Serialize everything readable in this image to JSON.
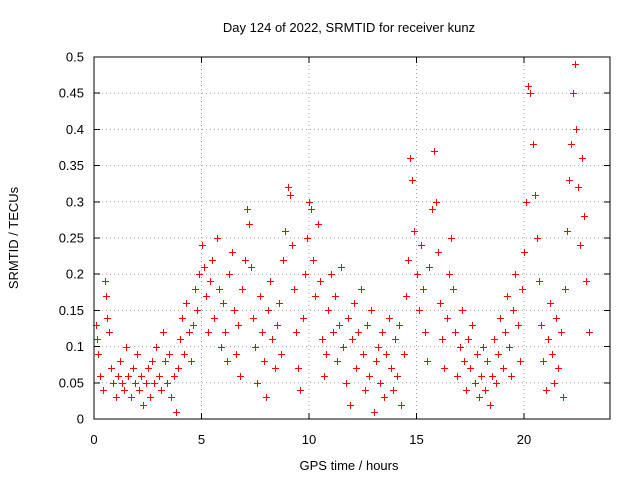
{
  "chart_data": {
    "type": "scatter",
    "title": "Day 124 of 2022, SRMTID for receiver kunz",
    "xlabel": "GPS time / hours",
    "ylabel": "SRMTID / TECUs",
    "xlim": [
      0,
      24
    ],
    "ylim": [
      0,
      0.5
    ],
    "xticks": [
      0,
      5,
      10,
      15,
      20
    ],
    "xtick_labels": [
      "0",
      "5",
      "10",
      "15",
      "20"
    ],
    "yticks": [
      0,
      0.05,
      0.1,
      0.15,
      0.2,
      0.25,
      0.3,
      0.35,
      0.4,
      0.45,
      0.5
    ],
    "ytick_labels": [
      "0",
      "0.05",
      "0.1",
      "0.15",
      "0.2",
      "0.25",
      "0.3",
      "0.35",
      "0.4",
      "0.45",
      "0.5"
    ],
    "grid": true,
    "marker": "+",
    "marker_color": "#ff0000",
    "series": [
      {
        "name": "SRMTID",
        "points": [
          [
            0.1,
            0.13
          ],
          [
            0.15,
            0.11
          ],
          [
            0.2,
            0.09
          ],
          [
            0.3,
            0.06
          ],
          [
            0.4,
            0.04
          ],
          [
            0.5,
            0.19
          ],
          [
            0.55,
            0.17
          ],
          [
            0.6,
            0.14
          ],
          [
            0.7,
            0.12
          ],
          [
            0.8,
            0.07
          ],
          [
            0.9,
            0.05
          ],
          [
            1.0,
            0.03
          ],
          [
            1.1,
            0.06
          ],
          [
            1.2,
            0.08
          ],
          [
            1.3,
            0.05
          ],
          [
            1.4,
            0.04
          ],
          [
            1.5,
            0.1
          ],
          [
            1.6,
            0.06
          ],
          [
            1.7,
            0.03
          ],
          [
            1.8,
            0.07
          ],
          [
            1.9,
            0.05
          ],
          [
            2.0,
            0.09
          ],
          [
            2.1,
            0.04
          ],
          [
            2.2,
            0.06
          ],
          [
            2.3,
            0.02
          ],
          [
            2.4,
            0.05
          ],
          [
            2.5,
            0.07
          ],
          [
            2.6,
            0.03
          ],
          [
            2.7,
            0.08
          ],
          [
            2.8,
            0.05
          ],
          [
            2.9,
            0.1
          ],
          [
            3.0,
            0.06
          ],
          [
            3.1,
            0.04
          ],
          [
            3.2,
            0.12
          ],
          [
            3.3,
            0.08
          ],
          [
            3.4,
            0.05
          ],
          [
            3.5,
            0.09
          ],
          [
            3.6,
            0.03
          ],
          [
            3.7,
            0.06
          ],
          [
            3.8,
            0.01
          ],
          [
            3.9,
            0.07
          ],
          [
            4.0,
            0.11
          ],
          [
            4.1,
            0.14
          ],
          [
            4.2,
            0.09
          ],
          [
            4.3,
            0.16
          ],
          [
            4.4,
            0.12
          ],
          [
            4.5,
            0.08
          ],
          [
            4.6,
            0.13
          ],
          [
            4.7,
            0.18
          ],
          [
            4.8,
            0.15
          ],
          [
            4.9,
            0.2
          ],
          [
            5.0,
            0.24
          ],
          [
            5.1,
            0.21
          ],
          [
            5.2,
            0.17
          ],
          [
            5.3,
            0.12
          ],
          [
            5.4,
            0.19
          ],
          [
            5.5,
            0.22
          ],
          [
            5.6,
            0.14
          ],
          [
            5.7,
            0.25
          ],
          [
            5.8,
            0.18
          ],
          [
            5.9,
            0.1
          ],
          [
            6.0,
            0.16
          ],
          [
            6.1,
            0.12
          ],
          [
            6.2,
            0.08
          ],
          [
            6.3,
            0.2
          ],
          [
            6.4,
            0.23
          ],
          [
            6.5,
            0.15
          ],
          [
            6.6,
            0.09
          ],
          [
            6.7,
            0.13
          ],
          [
            6.8,
            0.06
          ],
          [
            6.9,
            0.18
          ],
          [
            7.0,
            0.22
          ],
          [
            7.1,
            0.29
          ],
          [
            7.2,
            0.27
          ],
          [
            7.3,
            0.21
          ],
          [
            7.4,
            0.14
          ],
          [
            7.5,
            0.1
          ],
          [
            7.6,
            0.05
          ],
          [
            7.7,
            0.17
          ],
          [
            7.8,
            0.12
          ],
          [
            7.9,
            0.08
          ],
          [
            8.0,
            0.03
          ],
          [
            8.1,
            0.15
          ],
          [
            8.2,
            0.19
          ],
          [
            8.3,
            0.11
          ],
          [
            8.4,
            0.07
          ],
          [
            8.5,
            0.13
          ],
          [
            8.6,
            0.16
          ],
          [
            8.7,
            0.09
          ],
          [
            8.8,
            0.22
          ],
          [
            8.9,
            0.26
          ],
          [
            9.0,
            0.32
          ],
          [
            9.1,
            0.31
          ],
          [
            9.2,
            0.24
          ],
          [
            9.3,
            0.18
          ],
          [
            9.4,
            0.12
          ],
          [
            9.5,
            0.07
          ],
          [
            9.6,
            0.04
          ],
          [
            9.7,
            0.14
          ],
          [
            9.8,
            0.2
          ],
          [
            9.9,
            0.25
          ],
          [
            10.0,
            0.3
          ],
          [
            10.1,
            0.29
          ],
          [
            10.2,
            0.22
          ],
          [
            10.3,
            0.17
          ],
          [
            10.4,
            0.27
          ],
          [
            10.5,
            0.19
          ],
          [
            10.6,
            0.11
          ],
          [
            10.7,
            0.06
          ],
          [
            10.8,
            0.09
          ],
          [
            10.9,
            0.15
          ],
          [
            11.0,
            0.2
          ],
          [
            11.1,
            0.12
          ],
          [
            11.2,
            0.17
          ],
          [
            11.3,
            0.08
          ],
          [
            11.4,
            0.13
          ],
          [
            11.5,
            0.21
          ],
          [
            11.6,
            0.1
          ],
          [
            11.7,
            0.05
          ],
          [
            11.8,
            0.14
          ],
          [
            11.9,
            0.02
          ],
          [
            12.0,
            0.11
          ],
          [
            12.1,
            0.16
          ],
          [
            12.2,
            0.07
          ],
          [
            12.3,
            0.12
          ],
          [
            12.4,
            0.18
          ],
          [
            12.5,
            0.09
          ],
          [
            12.6,
            0.04
          ],
          [
            12.7,
            0.13
          ],
          [
            12.8,
            0.06
          ],
          [
            12.9,
            0.15
          ],
          [
            13.0,
            0.01
          ],
          [
            13.1,
            0.08
          ],
          [
            13.2,
            0.1
          ],
          [
            13.3,
            0.05
          ],
          [
            13.4,
            0.12
          ],
          [
            13.5,
            0.03
          ],
          [
            13.6,
            0.09
          ],
          [
            13.7,
            0.14
          ],
          [
            13.8,
            0.07
          ],
          [
            13.9,
            0.04
          ],
          [
            14.0,
            0.11
          ],
          [
            14.1,
            0.06
          ],
          [
            14.2,
            0.13
          ],
          [
            14.3,
            0.02
          ],
          [
            14.4,
            0.09
          ],
          [
            14.5,
            0.17
          ],
          [
            14.6,
            0.22
          ],
          [
            14.7,
            0.36
          ],
          [
            14.8,
            0.33
          ],
          [
            14.9,
            0.26
          ],
          [
            15.0,
            0.2
          ],
          [
            15.1,
            0.15
          ],
          [
            15.2,
            0.24
          ],
          [
            15.3,
            0.18
          ],
          [
            15.4,
            0.12
          ],
          [
            15.5,
            0.08
          ],
          [
            15.6,
            0.21
          ],
          [
            15.7,
            0.29
          ],
          [
            15.8,
            0.37
          ],
          [
            15.9,
            0.3
          ],
          [
            16.0,
            0.23
          ],
          [
            16.1,
            0.16
          ],
          [
            16.2,
            0.11
          ],
          [
            16.3,
            0.07
          ],
          [
            16.4,
            0.14
          ],
          [
            16.5,
            0.2
          ],
          [
            16.6,
            0.25
          ],
          [
            16.7,
            0.18
          ],
          [
            16.8,
            0.12
          ],
          [
            16.9,
            0.06
          ],
          [
            17.0,
            0.1
          ],
          [
            17.1,
            0.15
          ],
          [
            17.2,
            0.08
          ],
          [
            17.3,
            0.04
          ],
          [
            17.4,
            0.11
          ],
          [
            17.5,
            0.07
          ],
          [
            17.6,
            0.13
          ],
          [
            17.7,
            0.05
          ],
          [
            17.8,
            0.09
          ],
          [
            17.9,
            0.03
          ],
          [
            18.0,
            0.06
          ],
          [
            18.1,
            0.1
          ],
          [
            18.2,
            0.04
          ],
          [
            18.3,
            0.08
          ],
          [
            18.4,
            0.02
          ],
          [
            18.5,
            0.06
          ],
          [
            18.6,
            0.11
          ],
          [
            18.7,
            0.05
          ],
          [
            18.8,
            0.09
          ],
          [
            18.9,
            0.14
          ],
          [
            19.0,
            0.07
          ],
          [
            19.1,
            0.12
          ],
          [
            19.2,
            0.17
          ],
          [
            19.3,
            0.1
          ],
          [
            19.4,
            0.06
          ],
          [
            19.5,
            0.15
          ],
          [
            19.6,
            0.2
          ],
          [
            19.7,
            0.13
          ],
          [
            19.8,
            0.08
          ],
          [
            19.9,
            0.18
          ],
          [
            20.0,
            0.23
          ],
          [
            20.1,
            0.3
          ],
          [
            20.2,
            0.46
          ],
          [
            20.3,
            0.45
          ],
          [
            20.4,
            0.38
          ],
          [
            20.5,
            0.31
          ],
          [
            20.6,
            0.25
          ],
          [
            20.7,
            0.19
          ],
          [
            20.8,
            0.13
          ],
          [
            20.9,
            0.08
          ],
          [
            21.0,
            0.04
          ],
          [
            21.1,
            0.11
          ],
          [
            21.2,
            0.16
          ],
          [
            21.3,
            0.09
          ],
          [
            21.4,
            0.05
          ],
          [
            21.5,
            0.14
          ],
          [
            21.6,
            0.07
          ],
          [
            21.7,
            0.12
          ],
          [
            21.8,
            0.03
          ],
          [
            21.9,
            0.18
          ],
          [
            22.0,
            0.26
          ],
          [
            22.1,
            0.33
          ],
          [
            22.2,
            0.38
          ],
          [
            22.3,
            0.45
          ],
          [
            22.35,
            0.49
          ],
          [
            22.4,
            0.4
          ],
          [
            22.5,
            0.32
          ],
          [
            22.6,
            0.24
          ],
          [
            22.7,
            0.36
          ],
          [
            22.8,
            0.28
          ],
          [
            22.9,
            0.19
          ],
          [
            23.0,
            0.12
          ]
        ]
      }
    ]
  }
}
